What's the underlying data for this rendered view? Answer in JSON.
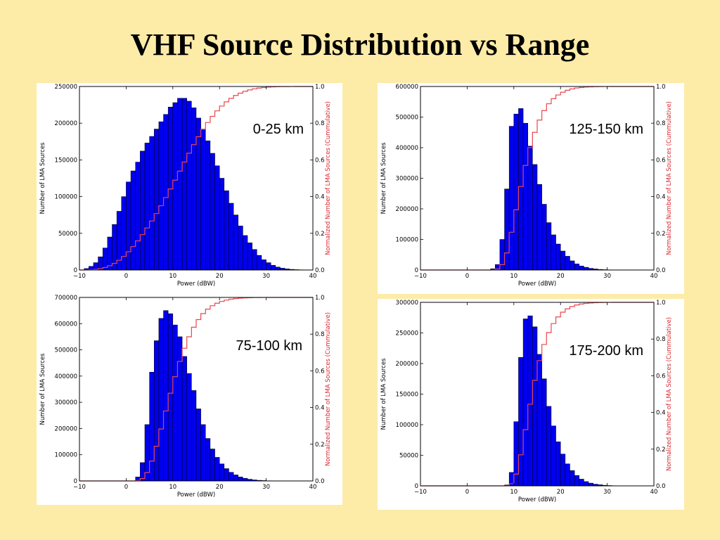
{
  "slide": {
    "title": "VHF Source Distribution vs Range"
  },
  "chart_data": [
    {
      "type": "bar",
      "panel_label": "0-25 km",
      "xlabel": "Power (dBW)",
      "ylabel": "Number of LMA Sources",
      "y2label": "Normalized Number of LMA Sources (Cummulative)",
      "xlim": [
        -10,
        40
      ],
      "ylim": [
        0,
        250000
      ],
      "y2lim": [
        0,
        1.0
      ],
      "x_ticks": [
        -10,
        0,
        10,
        20,
        30,
        40
      ],
      "x_tick_labels": [
        "−10",
        "0",
        "10",
        "20",
        "30",
        "40"
      ],
      "y_ticks": [
        0,
        50000,
        100000,
        150000,
        200000,
        250000
      ],
      "y_tick_labels": [
        "0",
        "50000",
        "100000",
        "150000",
        "200000",
        "250000"
      ],
      "y2_ticks": [
        "0.0",
        "0.2",
        "0.4",
        "0.6",
        "0.8",
        "1.0"
      ],
      "bin_start": -9,
      "bin_width": 1,
      "values": [
        2000,
        5000,
        10000,
        18000,
        30000,
        45000,
        62000,
        80000,
        100000,
        120000,
        135000,
        147000,
        162000,
        173000,
        182000,
        192000,
        202000,
        212000,
        222000,
        228000,
        234000,
        234000,
        230000,
        221000,
        207000,
        192000,
        176000,
        159000,
        142000,
        125000,
        108000,
        91000,
        75000,
        60000,
        47000,
        37000,
        28000,
        20000,
        14000,
        10000,
        6500,
        4000,
        2500,
        1500,
        900,
        500,
        300,
        150
      ],
      "cumulative": true,
      "bar_color": "#0000ee",
      "cumulative_color": "#e8474c"
    },
    {
      "type": "bar",
      "panel_label": "125-150 km",
      "xlabel": "Power (dBW)",
      "ylabel": "Number of LMA Sources",
      "y2label": "Normalized Number of LMA Sources (Cummulative)",
      "xlim": [
        -10,
        40
      ],
      "ylim": [
        0,
        600000
      ],
      "y2lim": [
        0,
        1.0
      ],
      "x_ticks": [
        -10,
        0,
        10,
        20,
        30,
        40
      ],
      "x_tick_labels": [
        "−10",
        "0",
        "10",
        "20",
        "30",
        "40"
      ],
      "y_ticks": [
        0,
        100000,
        200000,
        300000,
        400000,
        500000,
        600000
      ],
      "y_tick_labels": [
        "0",
        "100000",
        "200000",
        "300000",
        "400000",
        "500000",
        "600000"
      ],
      "y2_ticks": [
        "0.0",
        "0.2",
        "0.4",
        "0.6",
        "0.8",
        "1.0"
      ],
      "bin_start": 5,
      "bin_width": 1,
      "values": [
        4000,
        18000,
        100000,
        265000,
        470000,
        510000,
        528000,
        480000,
        405000,
        345000,
        280000,
        215000,
        155000,
        115000,
        85000,
        62000,
        45000,
        30000,
        20000,
        13000,
        9000,
        5500,
        3500,
        2000,
        1200,
        700,
        400
      ],
      "cumulative": true,
      "bar_color": "#0000ee",
      "cumulative_color": "#e8474c"
    },
    {
      "type": "bar",
      "panel_label": "75-100 km",
      "xlabel": "Power (dBW)",
      "ylabel": "Number of LMA Sources",
      "y2label": "Normalized Number of LMA Sources (Cummulative)",
      "xlim": [
        -10,
        40
      ],
      "ylim": [
        0,
        700000
      ],
      "y2lim": [
        0,
        1.0
      ],
      "x_ticks": [
        -10,
        0,
        10,
        20,
        30,
        40
      ],
      "x_tick_labels": [
        "−10",
        "0",
        "10",
        "20",
        "30",
        "40"
      ],
      "y_ticks": [
        0,
        100000,
        200000,
        300000,
        400000,
        500000,
        600000,
        700000
      ],
      "y_tick_labels": [
        "0",
        "100000",
        "200000",
        "300000",
        "400000",
        "500000",
        "600000",
        "700000"
      ],
      "y2_ticks": [
        "0.0",
        "0.2",
        "0.4",
        "0.6",
        "0.8",
        "1.0"
      ],
      "bin_start": 2,
      "bin_width": 1,
      "values": [
        15000,
        70000,
        215000,
        415000,
        535000,
        620000,
        650000,
        638000,
        595000,
        550000,
        475000,
        410000,
        345000,
        275000,
        215000,
        162000,
        122000,
        90000,
        65000,
        47000,
        33000,
        23000,
        15000,
        10000,
        6500,
        4000,
        2500,
        1500,
        800,
        400
      ],
      "cumulative": true,
      "bar_color": "#0000ee",
      "cumulative_color": "#e8474c"
    },
    {
      "type": "bar",
      "panel_label": "175-200 km",
      "xlabel": "Power (dBW)",
      "ylabel": "Number of LMA Sources",
      "y2label": "Normalized Number of LMA Sources (Cummulative)",
      "xlim": [
        -10,
        40
      ],
      "ylim": [
        0,
        300000
      ],
      "y2lim": [
        0,
        1.0
      ],
      "x_ticks": [
        -10,
        0,
        10,
        20,
        30,
        40
      ],
      "x_tick_labels": [
        "−10",
        "0",
        "10",
        "20",
        "30",
        "40"
      ],
      "y_ticks": [
        0,
        50000,
        100000,
        150000,
        200000,
        250000,
        300000
      ],
      "y_tick_labels": [
        "0",
        "50000",
        "100000",
        "150000",
        "200000",
        "250000",
        "300000"
      ],
      "y2_ticks": [
        "0.0",
        "0.2",
        "0.4",
        "0.6",
        "0.8",
        "1.0"
      ],
      "bin_start": 8,
      "bin_width": 1,
      "values": [
        1500,
        22000,
        105000,
        210000,
        273000,
        278000,
        260000,
        215000,
        175000,
        130000,
        98000,
        72000,
        52000,
        36000,
        25000,
        17000,
        11000,
        7000,
        4500,
        2800,
        1800,
        1000,
        600,
        300
      ],
      "cumulative": true,
      "bar_color": "#0000ee",
      "cumulative_color": "#e8474c"
    }
  ]
}
